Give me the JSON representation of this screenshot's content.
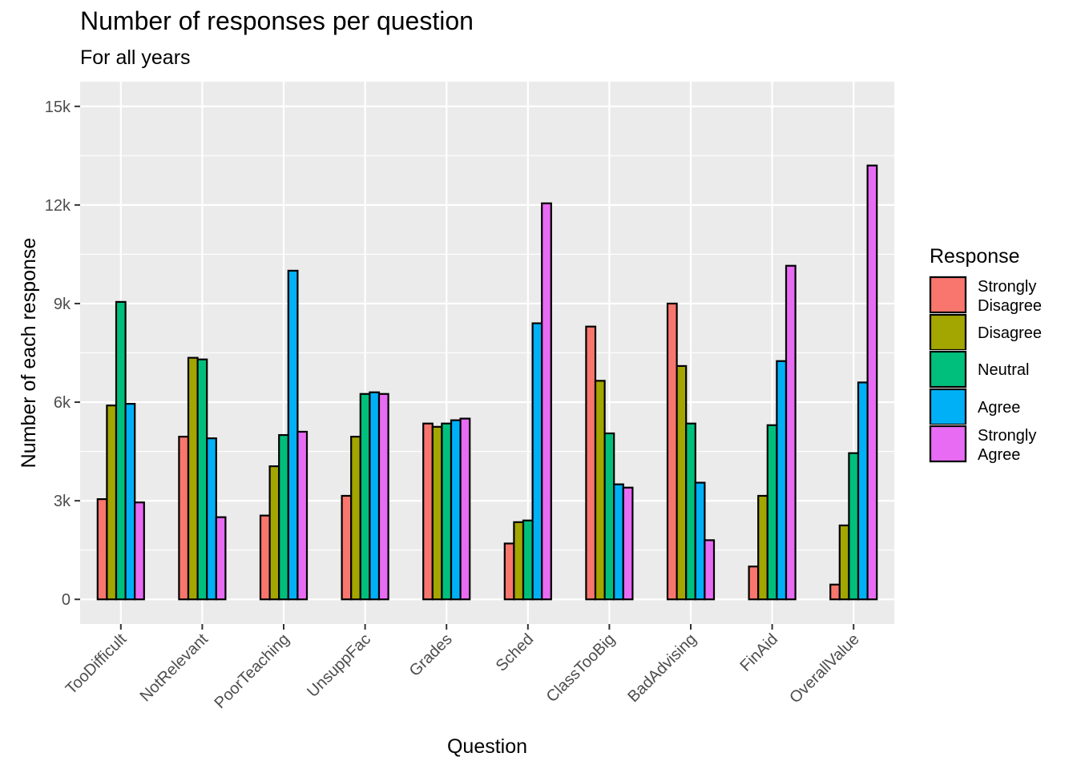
{
  "chart_data": {
    "type": "bar",
    "title": "Number of responses per question",
    "subtitle": "For all years",
    "xlabel": "Question",
    "ylabel": "Number of each response",
    "ylim": [
      -750,
      15750
    ],
    "yticks": [
      0,
      3000,
      6000,
      9000,
      12000,
      15000
    ],
    "ytick_labels": [
      "0",
      "3k",
      "6k",
      "9k",
      "12k",
      "15k"
    ],
    "grid": true,
    "legend_position": "right",
    "legend_title": "Response",
    "categories": [
      "TooDifficult",
      "NotRelevant",
      "PoorTeaching",
      "UnsuppFac",
      "Grades",
      "Sched",
      "ClassTooBig",
      "BadAdvising",
      "FinAid",
      "OverallValue"
    ],
    "series": [
      {
        "name": "Strongly Disagree",
        "color": "#F8766D",
        "values": [
          3050,
          4950,
          2550,
          3150,
          5350,
          1700,
          8300,
          9000,
          1000,
          450
        ]
      },
      {
        "name": "Disagree",
        "color": "#A3A500",
        "values": [
          5900,
          7350,
          4050,
          4950,
          5250,
          2350,
          6650,
          7100,
          3150,
          2250
        ]
      },
      {
        "name": "Neutral",
        "color": "#00BF7D",
        "values": [
          9050,
          7300,
          5000,
          6250,
          5350,
          2400,
          5050,
          5350,
          5300,
          4450
        ]
      },
      {
        "name": "Agree",
        "color": "#00B0F6",
        "values": [
          5950,
          4900,
          10000,
          6300,
          5450,
          8400,
          3500,
          3550,
          7250,
          6600
        ]
      },
      {
        "name": "Strongly Agree",
        "color": "#E76BF3",
        "values": [
          2950,
          2500,
          5100,
          6250,
          5500,
          12050,
          3400,
          1800,
          10150,
          13200
        ]
      }
    ]
  }
}
